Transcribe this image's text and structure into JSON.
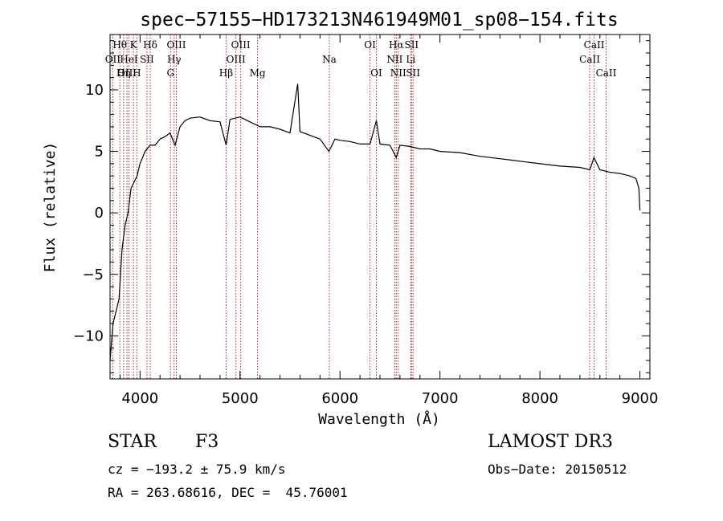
{
  "chart_data": {
    "type": "line",
    "title": "spec−57155−HD173213N461949M01_sp08−154.fits",
    "xlabel": "Wavelength (Å)",
    "ylabel": "Flux (relative)",
    "xlim": [
      3700,
      9100
    ],
    "ylim": [
      -13.5,
      14.5
    ],
    "xticks": [
      4000,
      5000,
      6000,
      7000,
      8000,
      9000
    ],
    "xtick_labels": [
      "4000",
      "5000",
      "6000",
      "7000",
      "8000",
      "9000"
    ],
    "yticks": [
      -10,
      -5,
      0,
      5,
      10
    ],
    "ytick_labels": [
      "−10",
      "−5",
      "0",
      "5",
      "10"
    ],
    "grid": false,
    "series": [
      {
        "x": [
          3700,
          3730,
          3760,
          3790,
          3820,
          3850,
          3880,
          3910,
          3940,
          3970,
          4000,
          4050,
          4100,
          4150,
          4200,
          4250,
          4300,
          4350,
          4400,
          4450,
          4500,
          4600,
          4700,
          4800,
          4861,
          4900,
          5000,
          5100,
          5200,
          5300,
          5400,
          5500,
          5577,
          5600,
          5700,
          5800,
          5890,
          5950,
          6000,
          6100,
          6200,
          6300,
          6364,
          6400,
          6500,
          6563,
          6600,
          6700,
          6800,
          6900,
          7000,
          7200,
          7400,
          7600,
          7800,
          8000,
          8200,
          8400,
          8500,
          8540,
          8600,
          8700,
          8800,
          8900,
          8960,
          8990,
          9000
        ],
        "y": [
          -12,
          -9,
          -8,
          -7,
          -3,
          -1,
          0,
          2,
          2.5,
          3,
          4,
          5,
          5.5,
          5.5,
          6,
          6.2,
          6.5,
          5.5,
          7,
          7.5,
          7.7,
          7.8,
          7.5,
          7.4,
          5.5,
          7.6,
          7.8,
          7.4,
          7.0,
          7.0,
          6.8,
          6.5,
          10.5,
          6.6,
          6.3,
          6.0,
          5.0,
          6.0,
          5.9,
          5.8,
          5.6,
          5.6,
          7.5,
          5.6,
          5.5,
          4.5,
          5.5,
          5.4,
          5.2,
          5.2,
          5.0,
          4.9,
          4.6,
          4.4,
          4.2,
          4.0,
          3.8,
          3.7,
          3.5,
          4.5,
          3.5,
          3.3,
          3.2,
          3.0,
          2.8,
          2.0,
          0.2
        ]
      }
    ],
    "line_markers": [
      {
        "label": "Hθ",
        "x": 3798,
        "row": 0
      },
      {
        "label": "K",
        "x": 3934,
        "row": 0
      },
      {
        "label": "Hδ",
        "x": 4102,
        "row": 0
      },
      {
        "label": "OIII",
        "x": 4363,
        "row": 0
      },
      {
        "label": "OII",
        "x": 3727,
        "row": 1
      },
      {
        "label": "HeI",
        "x": 3889,
        "row": 1
      },
      {
        "label": "SII",
        "x": 4069,
        "row": 1
      },
      {
        "label": "Hγ",
        "x": 4341,
        "row": 1
      },
      {
        "label": "OIII",
        "x": 3869,
        "row": 2
      },
      {
        "label": "Hη",
        "x": 3835,
        "row": 2
      },
      {
        "label": "H",
        "x": 3968,
        "row": 2
      },
      {
        "label": "G",
        "x": 4305,
        "row": 2
      },
      {
        "label": "OIII",
        "x": 5007,
        "row": 0
      },
      {
        "label": "OIII",
        "x": 4959,
        "row": 1
      },
      {
        "label": "Hβ",
        "x": 4861,
        "row": 2
      },
      {
        "label": "Mg",
        "x": 5175,
        "row": 2
      },
      {
        "label": "Na",
        "x": 5893,
        "row": 1
      },
      {
        "label": "OI",
        "x": 6300,
        "row": 0
      },
      {
        "label": "OI",
        "x": 6364,
        "row": 2
      },
      {
        "label": "Hα",
        "x": 6563,
        "row": 0
      },
      {
        "label": "SII",
        "x": 6716,
        "row": 0
      },
      {
        "label": "NII",
        "x": 6548,
        "row": 1
      },
      {
        "label": "Li",
        "x": 6708,
        "row": 1
      },
      {
        "label": "NII",
        "x": 6583,
        "row": 2
      },
      {
        "label": "SII",
        "x": 6731,
        "row": 2
      },
      {
        "label": "CaII",
        "x": 8542,
        "row": 0
      },
      {
        "label": "CaII",
        "x": 8498,
        "row": 1
      },
      {
        "label": "CaII",
        "x": 8662,
        "row": 2
      }
    ],
    "line_color": "#000000",
    "marker_color": "#b22222"
  },
  "info": {
    "object_class": "STAR",
    "subclass": "F3",
    "survey": "LAMOST DR3",
    "cz": "cz = −193.2 ± 75.9 km/s",
    "obs_date": "Obs−Date: 20150512",
    "coords": "RA = 263.68616, DEC =  45.76001"
  }
}
